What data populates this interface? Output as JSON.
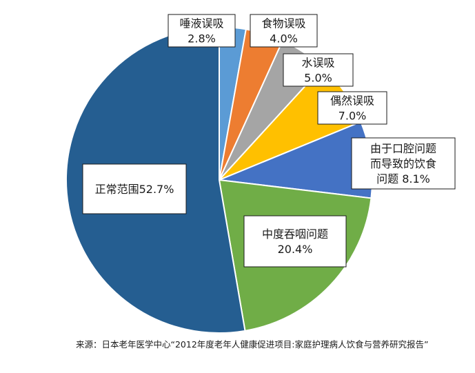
{
  "chart_data": {
    "type": "pie",
    "title": "",
    "slices": [
      {
        "name": "唾液误吸",
        "value": 2.8,
        "color": "#5b9bd5",
        "label_lines": [
          "唾液误吸",
          "2.8%"
        ]
      },
      {
        "name": "食物误吸",
        "value": 4.0,
        "color": "#ed7d31",
        "label_lines": [
          "食物误吸",
          "4.0%"
        ]
      },
      {
        "name": "水误吸",
        "value": 5.0,
        "color": "#a5a5a5",
        "label_lines": [
          "水误吸",
          "5.0%"
        ]
      },
      {
        "name": "偶然误吸",
        "value": 7.0,
        "color": "#ffc000",
        "label_lines": [
          "偶然误吸",
          "7.0%"
        ]
      },
      {
        "name": "由于口腔问题而导致的饮食问题",
        "value": 8.1,
        "color": "#4472c4",
        "label_lines": [
          "由于口腔问题",
          "而导致的饮食",
          "问题 8.1%"
        ]
      },
      {
        "name": "中度吞咽问题",
        "value": 20.4,
        "color": "#70ad47",
        "label_lines": [
          "中度吞咽问题",
          "20.4%"
        ]
      },
      {
        "name": "正常范围",
        "value": 52.7,
        "color": "#255e91",
        "label_lines": [
          "正常范围52.7%"
        ]
      }
    ]
  },
  "source": "来源：日本老年医学中心“2012年度老年人健康促进项目:家庭护理病人饮食与营养研究报告”"
}
